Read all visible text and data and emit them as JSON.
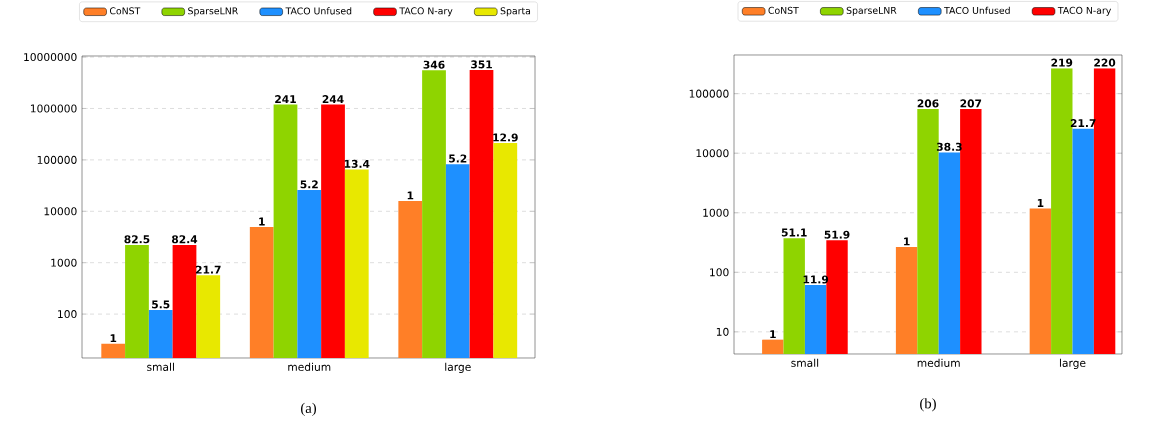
{
  "chart_data": [
    {
      "type": "bar",
      "categories": [
        "small",
        "medium",
        "large"
      ],
      "log": "y",
      "grid": "y",
      "legend": "top",
      "ylim": [
        14,
        10500000
      ],
      "yticks": [
        100,
        1000,
        10000,
        100000,
        1000000,
        10000000
      ],
      "series": [
        {
          "name": "CoNST",
          "color": "#ff7f27",
          "values": [
            26.6,
            4950,
            15900
          ]
        },
        {
          "name": "SparseLNR",
          "color": "#8fd400",
          "values": [
            2220,
            1190000,
            5530000
          ]
        },
        {
          "name": "TACO Unfused",
          "color": "#1e90ff",
          "values": [
            120,
            26000,
            82600
          ]
        },
        {
          "name": "TACO N-ary",
          "color": "#ff0000",
          "values": [
            2220,
            1190000,
            5600000
          ]
        },
        {
          "name": "Sparta",
          "color": "#e8e800",
          "values": [
            571,
            65000,
            212000
          ]
        }
      ],
      "annotations": [
        "(a)",
        {
          "text": "1",
          "y": 26.6
        },
        {
          "text": "1",
          "y": 4950
        },
        {
          "text": "1",
          "y": 15900
        },
        {
          "text": "82.5",
          "y": 2220
        },
        {
          "text": "241",
          "y": 1190000
        },
        {
          "text": "346",
          "y": 5530000
        },
        {
          "text": "5.5",
          "x": "small",
          "y": 120
        },
        {
          "text": "5.2",
          "x": "medium",
          "y": 26000
        },
        {
          "text": "5.2",
          "x": "large",
          "y": 82600
        },
        {
          "text": "82.4",
          "y": 2220
        },
        {
          "text": "244",
          "y": 1190000
        },
        {
          "text": "351",
          "y": 5600000
        },
        {
          "text": "21.7",
          "y": 571
        },
        {
          "text": "13.4",
          "y": 65000
        },
        {
          "text": "12.9",
          "y": 212000
        }
      ]
    },
    {
      "type": "bar",
      "categories": [
        "small",
        "medium",
        "large"
      ],
      "log": "y",
      "grid": "y",
      "legend": "top",
      "ylim": [
        4.25,
        446000
      ],
      "yticks": [
        10,
        100,
        1000,
        10000,
        100000
      ],
      "series": [
        {
          "name": "CoNST",
          "color": "#ff7f27",
          "values": [
            7.4,
            267,
            1180
          ]
        },
        {
          "name": "SparseLNR",
          "color": "#8fd400",
          "values": [
            375,
            55200,
            267000
          ]
        },
        {
          "name": "TACO Unfused",
          "color": "#1e90ff",
          "values": [
            61,
            10300,
            25900
          ]
        },
        {
          "name": "TACO N-ary",
          "color": "#ff0000",
          "values": [
            345,
            55200,
            267000
          ]
        }
      ],
      "annotations": [
        "(b)",
        {
          "text": "1",
          "x": "small",
          "y": 7.4
        },
        {
          "text": "1",
          "x": "medium",
          "y": 267
        },
        {
          "text": "1",
          "x": "large",
          "y": 1180
        },
        {
          "text": "51.1",
          "x": "small",
          "y": 375
        },
        {
          "text": "206",
          "x": "medium",
          "y": 55200
        },
        {
          "text": "219",
          "x": "large",
          "y": 267000
        },
        {
          "text": "11.9",
          "x": "small",
          "y": 61
        },
        {
          "text": "38.3",
          "x": "medium",
          "y": 10300
        },
        {
          "text": "21.7",
          "x": "large",
          "y": 25900
        },
        {
          "text": "51.9",
          "x": "small",
          "y": 345
        },
        {
          "text": "207",
          "x": "medium",
          "y": 55200
        },
        {
          "text": "220",
          "x": "large",
          "y": 267000
        }
      ]
    }
  ]
}
